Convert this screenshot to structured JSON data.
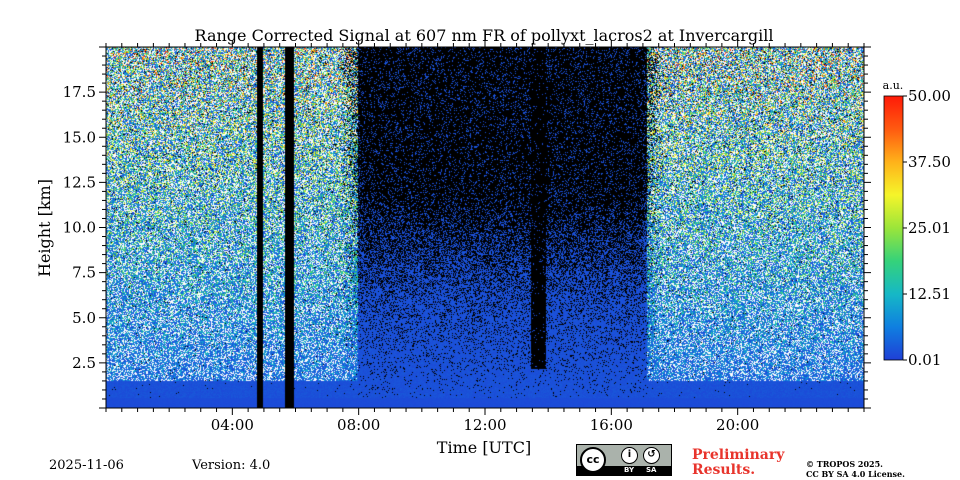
{
  "chart_data": {
    "type": "heatmap",
    "title": "Range Corrected Signal at 607 nm FR of pollyxt_lacros2 at Invercargill",
    "xlabel": "Time [UTC]",
    "ylabel": "Height [km]",
    "xlim_hours": [
      0,
      24
    ],
    "ylim_km": [
      0,
      20
    ],
    "x_ticks": [
      {
        "hour": 4,
        "label": "04:00"
      },
      {
        "hour": 8,
        "label": "08:00"
      },
      {
        "hour": 12,
        "label": "12:00"
      },
      {
        "hour": 16,
        "label": "16:00"
      },
      {
        "hour": 20,
        "label": "20:00"
      }
    ],
    "y_ticks": [
      {
        "km": 2.5,
        "label": "2.5"
      },
      {
        "km": 5.0,
        "label": "5.0"
      },
      {
        "km": 7.5,
        "label": "7.5"
      },
      {
        "km": 10.0,
        "label": "10.0"
      },
      {
        "km": 12.5,
        "label": "12.5"
      },
      {
        "km": 15.0,
        "label": "15.0"
      },
      {
        "km": 17.5,
        "label": "17.5"
      }
    ],
    "colorbar": {
      "unit": "a.u.",
      "min": 0.01,
      "max": 50.0,
      "ticks": [
        {
          "value": 0.01,
          "label": "0.01"
        },
        {
          "value": 12.51,
          "label": "12.51"
        },
        {
          "value": 25.01,
          "label": "25.01"
        },
        {
          "value": 37.5,
          "label": "37.50"
        },
        {
          "value": 50.0,
          "label": "50.00"
        }
      ],
      "colors": [
        "#1f3fd6",
        "#0f7fe0",
        "#16b8c6",
        "#35d27a",
        "#9be53a",
        "#f5f52a",
        "#ffb21a",
        "#ff5a10",
        "#ff1a08"
      ]
    },
    "night_noise_intervals_hours": [
      [
        0,
        8.0
      ],
      [
        17.0,
        24
      ]
    ],
    "gap_intervals_hours": [
      [
        4.75,
        4.95
      ],
      [
        5.65,
        5.95
      ]
    ],
    "cloud_columns_hours": [
      [
        13.45,
        13.9
      ]
    ]
  },
  "footer": {
    "date": "2025-11-06",
    "version": "Version: 4.0",
    "preliminary_line1": "Preliminary",
    "preliminary_line2": "Results.",
    "copyright_line1": "© TROPOS 2025.",
    "copyright_line2": "CC BY SA 4.0 License.",
    "cc_label": "cc",
    "by_label": "BY",
    "sa_label": "SA"
  }
}
